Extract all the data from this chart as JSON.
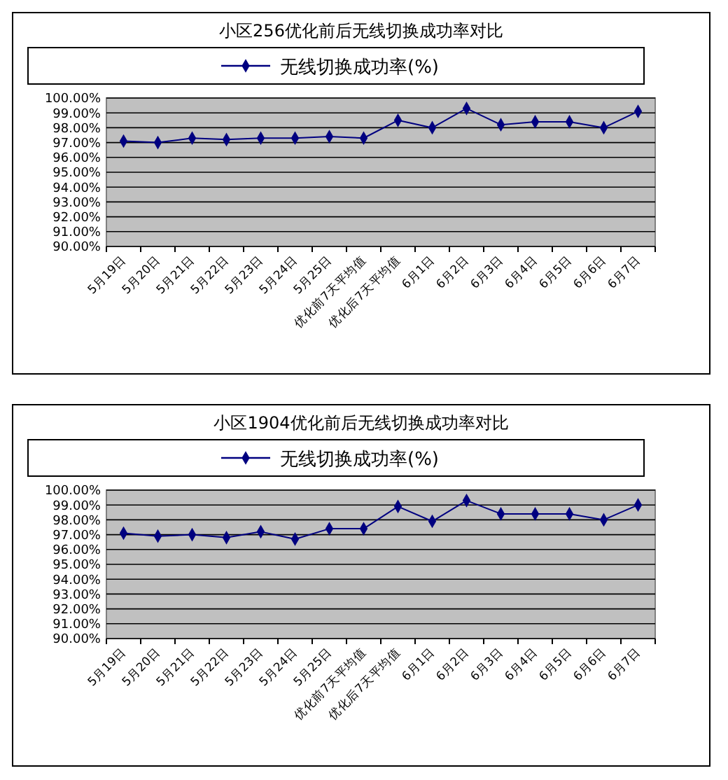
{
  "chart_data": [
    {
      "type": "line",
      "title": "小区256优化前后无线切换成功率对比",
      "categories": [
        "5月19日",
        "5月20日",
        "5月21日",
        "5月22日",
        "5月23日",
        "5月24日",
        "5月25日",
        "优化前7天平均值",
        "优化后7天平均值",
        "6月1日",
        "6月2日",
        "6月3日",
        "6月4日",
        "6月5日",
        "6月6日",
        "6月7日"
      ],
      "series": [
        {
          "name": "无线切换成功率(%)",
          "color": "#000080",
          "values": [
            97.1,
            97.0,
            97.3,
            97.2,
            97.3,
            97.3,
            97.4,
            97.3,
            98.5,
            98.0,
            99.3,
            98.2,
            98.4,
            98.4,
            98.0,
            99.1
          ]
        }
      ],
      "ylim": [
        90,
        100
      ],
      "yticks": [
        {
          "value": 90,
          "label": "90.00%"
        },
        {
          "value": 91,
          "label": "91.00%"
        },
        {
          "value": 92,
          "label": "92.00%"
        },
        {
          "value": 93,
          "label": "93.00%"
        },
        {
          "value": 94,
          "label": "94.00%"
        },
        {
          "value": 95,
          "label": "95.00%"
        },
        {
          "value": 96,
          "label": "96.00%"
        },
        {
          "value": 97,
          "label": "97.00%"
        },
        {
          "value": 98,
          "label": "98.00%"
        },
        {
          "value": 99,
          "label": "99.00%"
        },
        {
          "value": 100,
          "label": "100.00%"
        }
      ],
      "grid": "y",
      "legend": "top",
      "marker": "diamond"
    },
    {
      "type": "line",
      "title": "小区1904优化前后无线切换成功率对比",
      "categories": [
        "5月19日",
        "5月20日",
        "5月21日",
        "5月22日",
        "5月23日",
        "5月24日",
        "5月25日",
        "优化前7天平均值",
        "优化后7天平均值",
        "6月1日",
        "6月2日",
        "6月3日",
        "6月4日",
        "6月5日",
        "6月6日",
        "6月7日"
      ],
      "series": [
        {
          "name": "无线切换成功率(%)",
          "color": "#000080",
          "values": [
            97.1,
            96.9,
            97.0,
            96.8,
            97.2,
            96.7,
            97.4,
            97.4,
            98.9,
            97.9,
            99.3,
            98.4,
            98.4,
            98.4,
            98.0,
            99.0
          ]
        }
      ],
      "ylim": [
        90,
        100
      ],
      "yticks": [
        {
          "value": 90,
          "label": "90.00%"
        },
        {
          "value": 91,
          "label": "91.00%"
        },
        {
          "value": 92,
          "label": "92.00%"
        },
        {
          "value": 93,
          "label": "93.00%"
        },
        {
          "value": 94,
          "label": "94.00%"
        },
        {
          "value": 95,
          "label": "95.00%"
        },
        {
          "value": 96,
          "label": "96.00%"
        },
        {
          "value": 97,
          "label": "97.00%"
        },
        {
          "value": 98,
          "label": "98.00%"
        },
        {
          "value": 99,
          "label": "99.00%"
        },
        {
          "value": 100,
          "label": "100.00%"
        }
      ],
      "grid": "y",
      "legend": "top",
      "marker": "diamond"
    }
  ]
}
